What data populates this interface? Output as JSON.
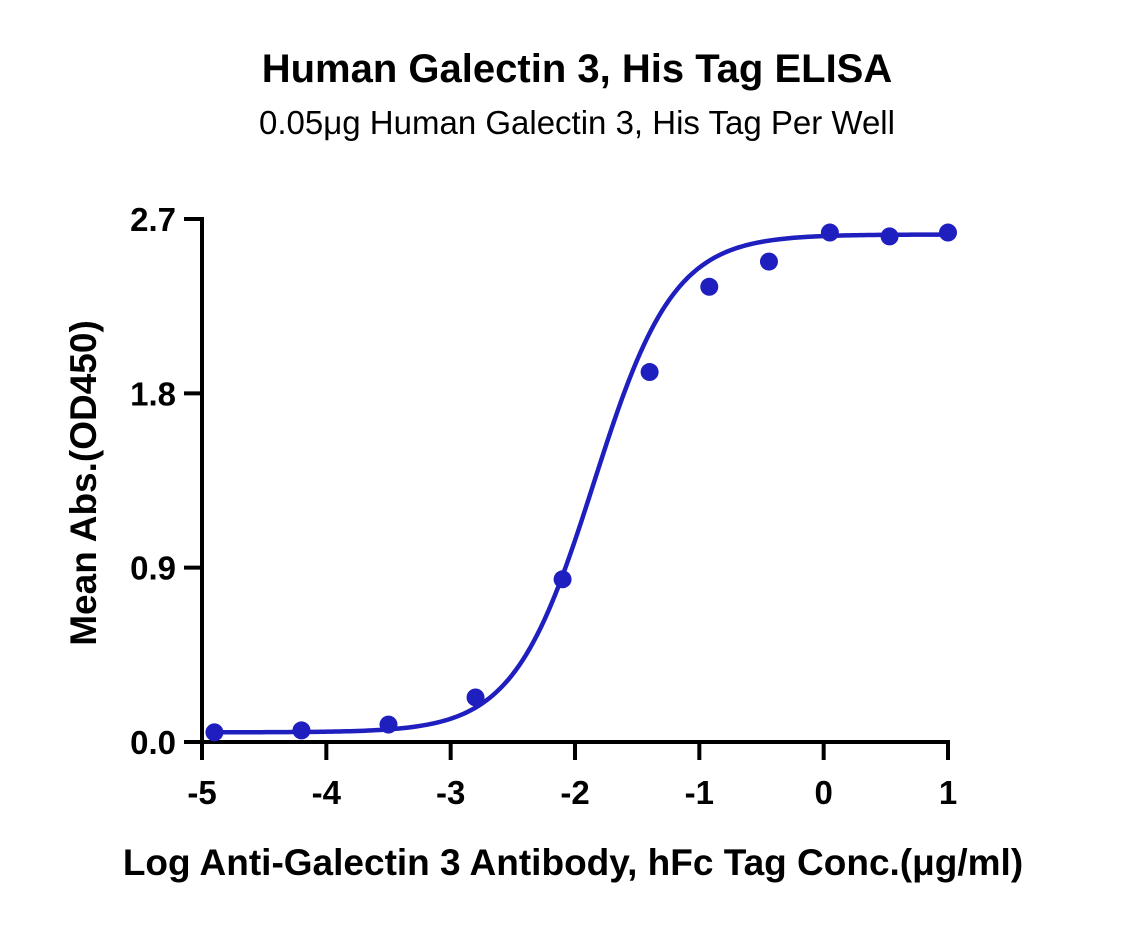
{
  "chart_data": {
    "type": "scatter",
    "title": "Human Galectin 3, His Tag ELISA",
    "subtitle": "0.05μg Human Galectin 3, His Tag Per Well",
    "xlabel": "Log Anti-Galectin 3 Antibody, hFc Tag Conc.(μg/ml)",
    "ylabel": "Mean Abs.(OD450)",
    "xlim": [
      -5,
      1
    ],
    "ylim": [
      0,
      2.7
    ],
    "x_ticks": [
      -5,
      -4,
      -3,
      -2,
      -1,
      0,
      1
    ],
    "x_tick_labels": [
      "-5",
      "-4",
      "-3",
      "-2",
      "-1",
      "0",
      "1"
    ],
    "y_ticks": [
      0,
      0.9,
      1.8,
      2.7
    ],
    "y_tick_labels": [
      "0.0",
      "0.9",
      "1.8",
      "2.7"
    ],
    "grid": false,
    "series": [
      {
        "color": "#1f1fbf",
        "x": [
          -4.9,
          -4.2,
          -3.5,
          -2.8,
          -2.1,
          -1.4,
          -0.92,
          -0.44,
          0.05,
          0.53,
          1.0
        ],
        "values": [
          0.05,
          0.06,
          0.09,
          0.23,
          0.84,
          1.91,
          2.35,
          2.48,
          2.63,
          2.61,
          2.63
        ],
        "fit": {
          "model": "4PL",
          "bottom": 0.05,
          "top": 2.62,
          "logEC50": -1.85,
          "hill": 1.35
        }
      }
    ]
  }
}
